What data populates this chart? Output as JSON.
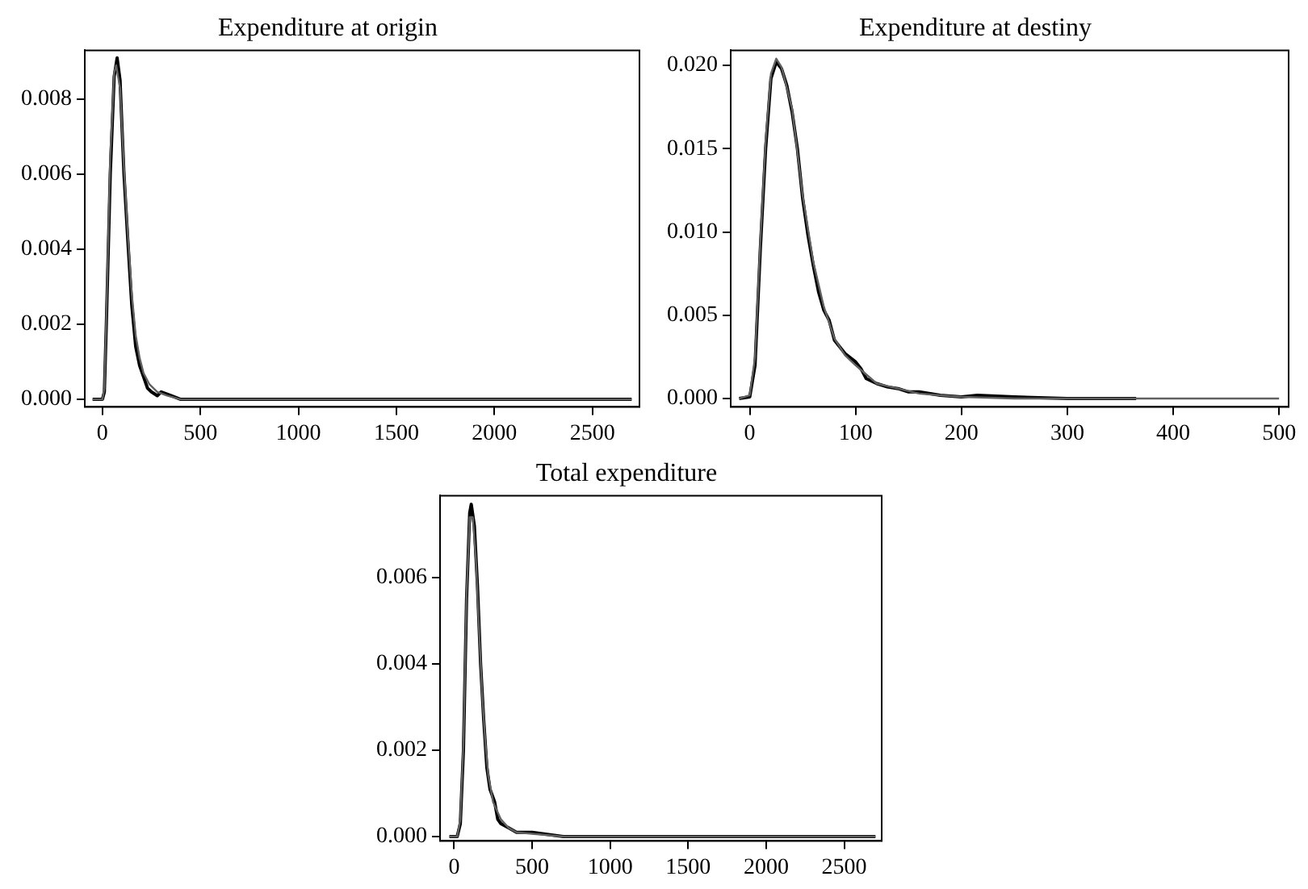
{
  "chart_data": [
    {
      "type": "line",
      "title": "Expenditure at origin",
      "xlim": [
        -90,
        2740
      ],
      "xticks": [
        0,
        500,
        1000,
        1500,
        2000,
        2500
      ],
      "ylim": [
        -0.0002,
        0.0093
      ],
      "yticks": [
        {
          "value": 0,
          "label": "0.000"
        },
        {
          "value": 0.002,
          "label": "0.002"
        },
        {
          "value": 0.004,
          "label": "0.004"
        },
        {
          "value": 0.006,
          "label": "0.006"
        },
        {
          "value": 0.008,
          "label": "0.008"
        }
      ],
      "grid": false,
      "legend": false,
      "marker": "none",
      "line_style": "solid",
      "series": [
        {
          "color": "#000000",
          "x": [
            -50,
            0,
            10,
            20,
            40,
            60,
            75,
            90,
            110,
            130,
            150,
            170,
            190,
            210,
            230,
            250,
            280,
            300,
            350,
            400,
            700,
            2700
          ],
          "values": [
            0,
            0,
            0.0002,
            0.002,
            0.006,
            0.0086,
            0.0091,
            0.0085,
            0.006,
            0.0042,
            0.0025,
            0.0014,
            0.0009,
            0.0006,
            0.0003,
            0.0002,
            0.0001,
            0.0002,
            0.0001,
            0,
            0,
            0
          ]
        },
        {
          "color": "#606060",
          "x": [
            -50,
            0,
            10,
            20,
            40,
            60,
            70,
            90,
            110,
            130,
            150,
            170,
            190,
            210,
            240,
            280,
            330,
            400,
            700,
            2700
          ],
          "values": [
            0,
            0,
            0.0003,
            0.0022,
            0.0065,
            0.0087,
            0.0089,
            0.0083,
            0.0062,
            0.0044,
            0.0028,
            0.0017,
            0.0011,
            0.0007,
            0.0004,
            0.0002,
            0.0001,
            0,
            0,
            0
          ]
        }
      ]
    },
    {
      "type": "line",
      "title": "Expenditure at destiny",
      "xlim": [
        -18,
        509
      ],
      "xticks": [
        0,
        100,
        200,
        300,
        400,
        500
      ],
      "ylim": [
        -0.0005,
        0.0209
      ],
      "yticks": [
        {
          "value": 0,
          "label": "0.000"
        },
        {
          "value": 0.005,
          "label": "0.005"
        },
        {
          "value": 0.01,
          "label": "0.010"
        },
        {
          "value": 0.015,
          "label": "0.015"
        },
        {
          "value": 0.02,
          "label": "0.020"
        }
      ],
      "grid": false,
      "legend": false,
      "marker": "none",
      "line_style": "solid",
      "series": [
        {
          "color": "#000000",
          "x": [
            -10,
            0,
            5,
            10,
            15,
            20,
            25,
            30,
            35,
            40,
            45,
            50,
            55,
            60,
            65,
            70,
            75,
            80,
            90,
            100,
            105,
            110,
            120,
            130,
            140,
            150,
            160,
            180,
            200,
            215,
            250,
            300,
            365
          ],
          "values": [
            0,
            0.0001,
            0.002,
            0.009,
            0.015,
            0.0192,
            0.0202,
            0.0198,
            0.0188,
            0.0172,
            0.015,
            0.012,
            0.0098,
            0.008,
            0.0064,
            0.0053,
            0.0047,
            0.0035,
            0.0027,
            0.0022,
            0.0018,
            0.0012,
            0.0009,
            0.0007,
            0.0006,
            0.0004,
            0.0004,
            0.0002,
            0.0001,
            0.0002,
            0.0001,
            0,
            0
          ]
        },
        {
          "color": "#606060",
          "x": [
            -10,
            0,
            5,
            10,
            15,
            20,
            25,
            30,
            40,
            50,
            60,
            70,
            80,
            90,
            100,
            120,
            140,
            160,
            180,
            200,
            250,
            300,
            400,
            500
          ],
          "values": [
            0,
            0.0002,
            0.0025,
            0.0095,
            0.0155,
            0.0195,
            0.0204,
            0.0199,
            0.0174,
            0.0122,
            0.0082,
            0.0055,
            0.0036,
            0.0026,
            0.002,
            0.0009,
            0.0006,
            0.0003,
            0.0002,
            0.0001,
            0,
            0,
            0,
            0
          ]
        }
      ]
    },
    {
      "type": "line",
      "title": "Total expenditure",
      "xlim": [
        -90,
        2740
      ],
      "xticks": [
        0,
        500,
        1000,
        1500,
        2000,
        2500
      ],
      "ylim": [
        -0.0001,
        0.0079
      ],
      "yticks": [
        {
          "value": 0,
          "label": "0.000"
        },
        {
          "value": 0.002,
          "label": "0.002"
        },
        {
          "value": 0.004,
          "label": "0.004"
        },
        {
          "value": 0.006,
          "label": "0.006"
        }
      ],
      "grid": false,
      "legend": false,
      "marker": "none",
      "line_style": "solid",
      "series": [
        {
          "color": "#000000",
          "x": [
            -30,
            20,
            40,
            60,
            80,
            100,
            110,
            130,
            150,
            170,
            190,
            210,
            230,
            260,
            280,
            300,
            350,
            400,
            500,
            700,
            1000,
            2700
          ],
          "values": [
            0,
            0,
            0.0003,
            0.002,
            0.0055,
            0.0075,
            0.0077,
            0.0072,
            0.0058,
            0.004,
            0.0027,
            0.0016,
            0.0011,
            0.0008,
            0.0004,
            0.0003,
            0.0002,
            0.0001,
            0.0001,
            0,
            0,
            0
          ]
        },
        {
          "color": "#606060",
          "x": [
            -30,
            20,
            40,
            60,
            80,
            100,
            120,
            140,
            160,
            180,
            200,
            220,
            250,
            300,
            350,
            400,
            700,
            1000,
            2700
          ],
          "values": [
            0,
            0,
            0.0004,
            0.0022,
            0.0056,
            0.0074,
            0.0074,
            0.0064,
            0.0048,
            0.0033,
            0.0022,
            0.0014,
            0.0008,
            0.0004,
            0.0002,
            0.0001,
            0,
            0,
            0
          ]
        }
      ]
    }
  ]
}
